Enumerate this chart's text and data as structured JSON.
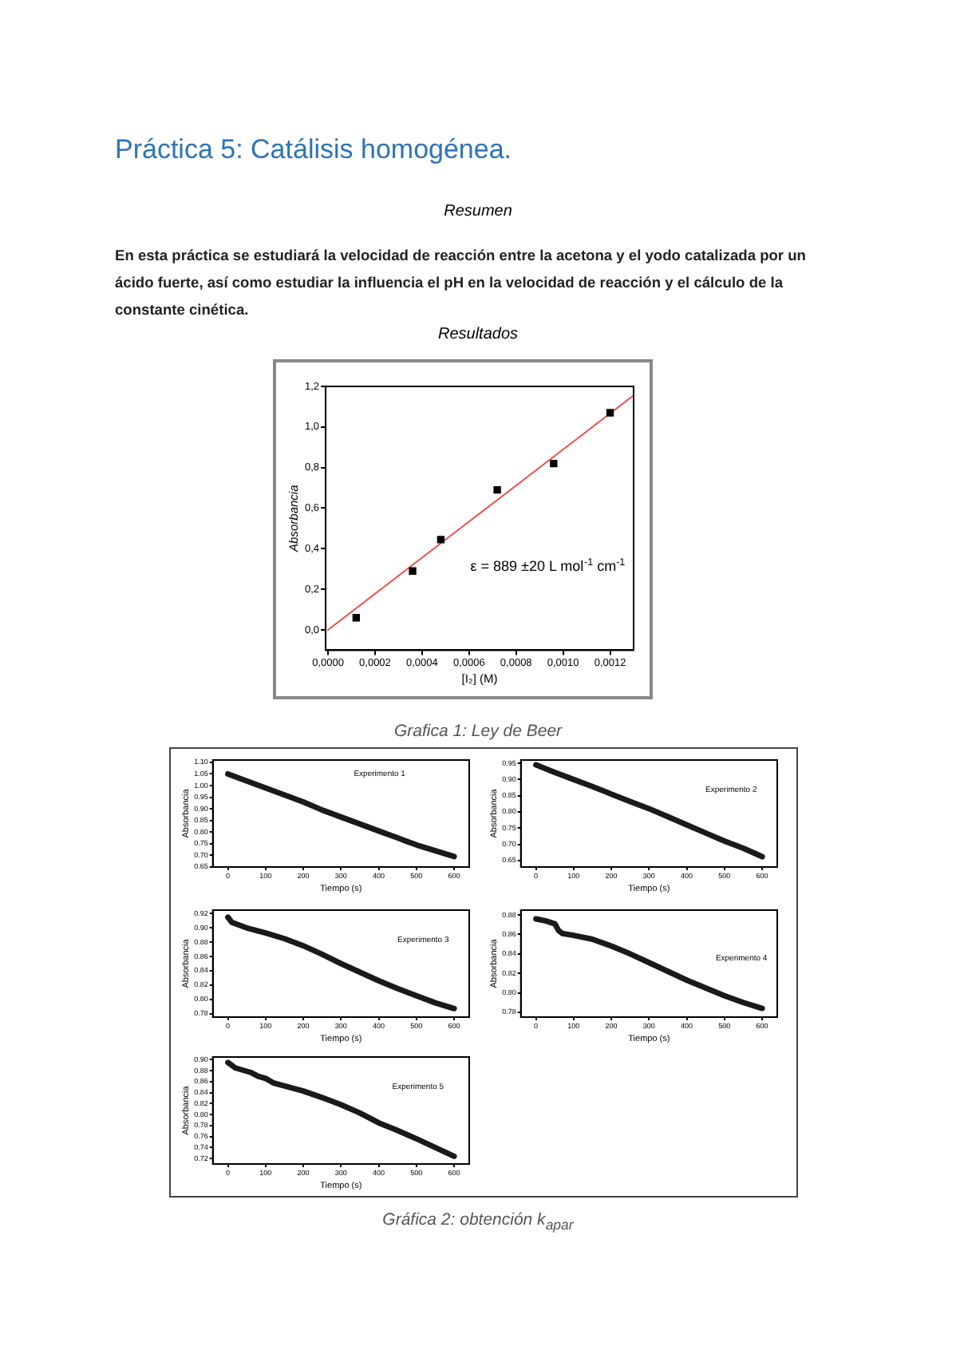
{
  "chart_data": [
    {
      "type": "scatter",
      "title": "Práctica 5: Catálisis homogénea.",
      "xlabel": "[I₂] (M)",
      "ylabel": "Absorbancia",
      "annotations": [
        "Resumen",
        "En esta práctica se estudiará la velocidad de reacción entre la acetona y el yodo catalizada por un ácido fuerte, así como estudiar la influencia el pH en la velocidad de reacción y el cálculo de la constante cinética.",
        "Resultados",
        "ε = 889 ±20 L mol$^{-1}$ cm$^{-1}$",
        "Grafica 1: Ley de Beer"
      ],
      "x": [
        0.00012,
        0.00036,
        0.00048,
        0.00072,
        0.00096,
        0.0012
      ],
      "series": [
        {
          "type": "scatter",
          "color": "#000000",
          "marker": "square",
          "values": [
            0.06,
            0.29,
            0.445,
            0.69,
            0.82,
            1.07
          ]
        },
        {
          "type": "line",
          "color": "#f05050",
          "marker": "none",
          "x": [
            0,
            0.0013
          ],
          "values": [
            0,
            1.156
          ]
        }
      ],
      "xlim": [
        -1e-05,
        0.0013
      ],
      "ylim": [
        -0.1,
        1.2
      ],
      "xticks": [
        {
          "value": 0,
          "label": "0,0000"
        },
        {
          "value": 0.0002,
          "label": "0,0002"
        },
        {
          "value": 0.0004,
          "label": "0,0004"
        },
        {
          "value": 0.0006,
          "label": "0,0006"
        },
        {
          "value": 0.0008,
          "label": "0,0008"
        },
        {
          "value": 0.001,
          "label": "0,0010"
        },
        {
          "value": 0.0012,
          "label": "0,0012"
        }
      ],
      "yticks": [
        {
          "value": 0,
          "label": "0,0"
        },
        {
          "value": 0.2,
          "label": "0,2"
        },
        {
          "value": 0.4,
          "label": "0,4"
        },
        {
          "value": 0.6,
          "label": "0,6"
        },
        {
          "value": 0.8,
          "label": "0,8"
        },
        {
          "value": 1,
          "label": "1,0"
        },
        {
          "value": 1.2,
          "label": "1,2"
        }
      ],
      "grid": false,
      "legend": false
    },
    {
      "type": "line",
      "xlabel": "Tiempo (s)",
      "ylabel": "Absorbancia",
      "annotations": [
        "Experimento 1"
      ],
      "marker": "none",
      "series": [
        {
          "color": "#1a1a1a",
          "x": [
            0,
            50,
            100,
            150,
            200,
            250,
            300,
            350,
            400,
            450,
            500,
            550,
            600
          ],
          "values": [
            1.05,
            1.02,
            0.99,
            0.96,
            0.93,
            0.895,
            0.865,
            0.835,
            0.805,
            0.775,
            0.745,
            0.72,
            0.695
          ]
        }
      ],
      "xlim": [
        -40,
        640
      ],
      "ylim": [
        0.65,
        1.11
      ],
      "xticks": [
        0,
        100,
        200,
        300,
        400,
        500,
        600
      ],
      "yticks": [
        {
          "value": 0.65,
          "label": "0.65"
        },
        {
          "value": 0.7,
          "label": "0.70"
        },
        {
          "value": 0.75,
          "label": "0.75"
        },
        {
          "value": 0.8,
          "label": "0.80"
        },
        {
          "value": 0.85,
          "label": "0.85"
        },
        {
          "value": 0.9,
          "label": "0.90"
        },
        {
          "value": 0.95,
          "label": "0.95"
        },
        {
          "value": 1,
          "label": "1.00"
        },
        {
          "value": 1.05,
          "label": "1.05"
        },
        {
          "value": 1.1,
          "label": "1.10"
        }
      ],
      "grid": false,
      "legend": false
    },
    {
      "type": "line",
      "xlabel": "Tiempo (s)",
      "ylabel": "Absorbancia",
      "annotations": [
        "Experimento 2"
      ],
      "marker": "none",
      "series": [
        {
          "color": "#1a1a1a",
          "x": [
            0,
            50,
            100,
            150,
            200,
            250,
            300,
            350,
            400,
            450,
            500,
            550,
            600
          ],
          "values": [
            0.945,
            0.922,
            0.9,
            0.878,
            0.855,
            0.832,
            0.81,
            0.785,
            0.76,
            0.735,
            0.71,
            0.688,
            0.662
          ]
        }
      ],
      "xlim": [
        -40,
        640
      ],
      "ylim": [
        0.63,
        0.96
      ],
      "xticks": [
        0,
        100,
        200,
        300,
        400,
        500,
        600
      ],
      "yticks": [
        {
          "value": 0.65,
          "label": "0.65"
        },
        {
          "value": 0.7,
          "label": "0.70"
        },
        {
          "value": 0.75,
          "label": "0.75"
        },
        {
          "value": 0.8,
          "label": "0.80"
        },
        {
          "value": 0.85,
          "label": "0.85"
        },
        {
          "value": 0.9,
          "label": "0.90"
        },
        {
          "value": 0.95,
          "label": "0.95"
        }
      ],
      "grid": false,
      "legend": false
    },
    {
      "type": "line",
      "xlabel": "Tiempo (s)",
      "ylabel": "Absorbancia",
      "annotations": [
        "Experimento 3"
      ],
      "marker": "none",
      "series": [
        {
          "color": "#1a1a1a",
          "x": [
            0,
            10,
            50,
            100,
            150,
            200,
            250,
            300,
            350,
            400,
            450,
            500,
            550,
            600
          ],
          "values": [
            0.915,
            0.908,
            0.9,
            0.893,
            0.885,
            0.875,
            0.863,
            0.85,
            0.838,
            0.826,
            0.815,
            0.805,
            0.795,
            0.787
          ]
        }
      ],
      "xlim": [
        -40,
        640
      ],
      "ylim": [
        0.775,
        0.925
      ],
      "xticks": [
        0,
        100,
        200,
        300,
        400,
        500,
        600
      ],
      "yticks": [
        {
          "value": 0.78,
          "label": "0.78"
        },
        {
          "value": 0.8,
          "label": "0.80"
        },
        {
          "value": 0.82,
          "label": "0.82"
        },
        {
          "value": 0.84,
          "label": "0.84"
        },
        {
          "value": 0.86,
          "label": "0.86"
        },
        {
          "value": 0.88,
          "label": "0.88"
        },
        {
          "value": 0.9,
          "label": "0.90"
        },
        {
          "value": 0.92,
          "label": "0.92"
        }
      ],
      "grid": false,
      "legend": false
    },
    {
      "type": "line",
      "xlabel": "Tiempo (s)",
      "ylabel": "Absorbancia",
      "annotations": [
        "Experimento 4"
      ],
      "marker": "none",
      "series": [
        {
          "color": "#1a1a1a",
          "x": [
            0,
            25,
            50,
            60,
            70,
            100,
            150,
            200,
            250,
            300,
            350,
            400,
            450,
            500,
            550,
            600
          ],
          "values": [
            0.876,
            0.874,
            0.871,
            0.864,
            0.861,
            0.859,
            0.855,
            0.848,
            0.84,
            0.831,
            0.822,
            0.813,
            0.805,
            0.797,
            0.79,
            0.784
          ]
        }
      ],
      "xlim": [
        -40,
        640
      ],
      "ylim": [
        0.775,
        0.885
      ],
      "xticks": [
        0,
        100,
        200,
        300,
        400,
        500,
        600
      ],
      "yticks": [
        {
          "value": 0.78,
          "label": "0.78"
        },
        {
          "value": 0.8,
          "label": "0.80"
        },
        {
          "value": 0.82,
          "label": "0.82"
        },
        {
          "value": 0.84,
          "label": "0.84"
        },
        {
          "value": 0.86,
          "label": "0.86"
        },
        {
          "value": 0.88,
          "label": "0.88"
        }
      ],
      "grid": false,
      "legend": false
    },
    {
      "type": "line",
      "xlabel": "Tiempo (s)",
      "ylabel": "Absorbancia",
      "annotations": [
        "Experimento 5",
        "Gráfica 2: obtención k$_{apar}$"
      ],
      "marker": "none",
      "series": [
        {
          "color": "#1a1a1a",
          "x": [
            0,
            20,
            60,
            80,
            100,
            120,
            200,
            250,
            300,
            350,
            400,
            450,
            500,
            550,
            600
          ],
          "values": [
            0.895,
            0.885,
            0.877,
            0.87,
            0.866,
            0.858,
            0.843,
            0.831,
            0.818,
            0.803,
            0.785,
            0.771,
            0.756,
            0.74,
            0.724
          ]
        }
      ],
      "xlim": [
        -40,
        640
      ],
      "ylim": [
        0.71,
        0.905
      ],
      "xticks": [
        0,
        100,
        200,
        300,
        400,
        500,
        600
      ],
      "yticks": [
        {
          "value": 0.72,
          "label": "0.72"
        },
        {
          "value": 0.74,
          "label": "0.74"
        },
        {
          "value": 0.76,
          "label": "0.76"
        },
        {
          "value": 0.78,
          "label": "0.78"
        },
        {
          "value": 0.8,
          "label": "0.80"
        },
        {
          "value": 0.82,
          "label": "0.82"
        },
        {
          "value": 0.84,
          "label": "0.84"
        },
        {
          "value": 0.86,
          "label": "0.86"
        },
        {
          "value": 0.88,
          "label": "0.88"
        },
        {
          "value": 0.9,
          "label": "0.90"
        }
      ],
      "grid": false,
      "legend": false
    }
  ]
}
